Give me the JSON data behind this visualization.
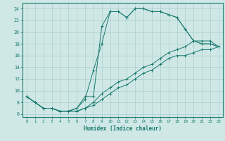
{
  "xlabel": "Humidex (Indice chaleur)",
  "xlim": [
    -0.5,
    23.5
  ],
  "ylim": [
    5.5,
    25.0
  ],
  "xticks": [
    0,
    1,
    2,
    3,
    4,
    5,
    6,
    7,
    8,
    9,
    10,
    11,
    12,
    13,
    14,
    15,
    16,
    17,
    18,
    19,
    20,
    21,
    22,
    23
  ],
  "yticks": [
    6,
    8,
    10,
    12,
    14,
    16,
    18,
    20,
    22,
    24
  ],
  "bg_color": "#cfe8e6",
  "grid_color": "#aacfcc",
  "line_color": "#1a7a6e",
  "line1_x": [
    0,
    1,
    2,
    3,
    4,
    5,
    6,
    7,
    8,
    9,
    10,
    11,
    12,
    13,
    14,
    15,
    16,
    17,
    18,
    19,
    20,
    21,
    22,
    23
  ],
  "line1_y": [
    9,
    8,
    7,
    7,
    6.5,
    6.5,
    7,
    9,
    9,
    21,
    23.5,
    23.5,
    22.5,
    24,
    24,
    23.5,
    23.5,
    23,
    22.5,
    20.5,
    18.5,
    18,
    18,
    17.5
  ],
  "line2_x": [
    0,
    1,
    2,
    3,
    4,
    5,
    6,
    7,
    8,
    9,
    10,
    11,
    12,
    13,
    14,
    15,
    16,
    17,
    18,
    19,
    20,
    21,
    22,
    23
  ],
  "line2_y": [
    9,
    8,
    7,
    7,
    6.5,
    6.5,
    7,
    8.5,
    13.5,
    18,
    23.5,
    23.5,
    22.5,
    24,
    24,
    23.5,
    23.5,
    23,
    22.5,
    20.5,
    18.5,
    18,
    18,
    17.5
  ],
  "line3_x": [
    0,
    1,
    2,
    3,
    4,
    5,
    6,
    7,
    8,
    9,
    10,
    11,
    12,
    13,
    14,
    15,
    16,
    17,
    18,
    19,
    20,
    21,
    22,
    23
  ],
  "line3_y": [
    9,
    8,
    7,
    7,
    6.5,
    6.5,
    6.5,
    7,
    7.5,
    8.5,
    9.5,
    10.5,
    11,
    12,
    13,
    13.5,
    14.5,
    15.5,
    16,
    16,
    16.5,
    17,
    17,
    17.5
  ],
  "line4_x": [
    0,
    1,
    2,
    3,
    4,
    5,
    6,
    7,
    8,
    9,
    10,
    11,
    12,
    13,
    14,
    15,
    16,
    17,
    18,
    19,
    20,
    21,
    22,
    23
  ],
  "line4_y": [
    9,
    8,
    7,
    7,
    6.5,
    6.5,
    6.5,
    7,
    8,
    9.5,
    10.5,
    11.5,
    12,
    13,
    14,
    14.5,
    15.5,
    16.5,
    17,
    17.5,
    18.5,
    18.5,
    18.5,
    17.5
  ]
}
